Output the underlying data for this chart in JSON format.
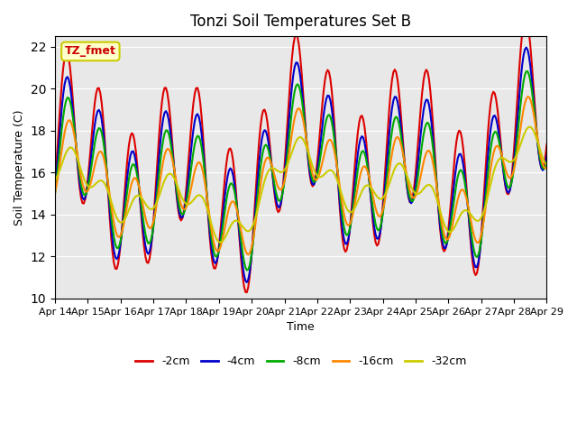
{
  "title": "Tonzi Soil Temperatures Set B",
  "xlabel": "Time",
  "ylabel": "Soil Temperature (C)",
  "ylim": [
    10,
    22.5
  ],
  "xlim": [
    0,
    15
  ],
  "x_tick_labels": [
    "Apr 14",
    "Apr 15",
    "Apr 16",
    "Apr 17",
    "Apr 18",
    "Apr 19",
    "Apr 20",
    "Apr 21",
    "Apr 22",
    "Apr 23",
    "Apr 24",
    "Apr 25",
    "Apr 26",
    "Apr 27",
    "Apr 28",
    "Apr 29"
  ],
  "annotation_text": "TZ_fmet",
  "annotation_color": "#cc0000",
  "annotation_bg": "#ffffcc",
  "annotation_border": "#cccc00",
  "bg_color": "#e8e8e8",
  "series": {
    "-2cm": {
      "color": "#dd0000",
      "lw": 1.5
    },
    "-4cm": {
      "color": "#0000cc",
      "lw": 1.5
    },
    "-8cm": {
      "color": "#00aa00",
      "lw": 1.5
    },
    "-16cm": {
      "color": "#ff8800",
      "lw": 1.5
    },
    "-32cm": {
      "color": "#cccc00",
      "lw": 1.5
    }
  },
  "legend_labels": [
    "-2cm",
    "-4cm",
    "-8cm",
    "-16cm",
    "-32cm"
  ],
  "legend_colors": [
    "#dd0000",
    "#0000cc",
    "#00aa00",
    "#ff8800",
    "#cccc00"
  ],
  "yticks": [
    10,
    12,
    14,
    16,
    18,
    20,
    22
  ]
}
